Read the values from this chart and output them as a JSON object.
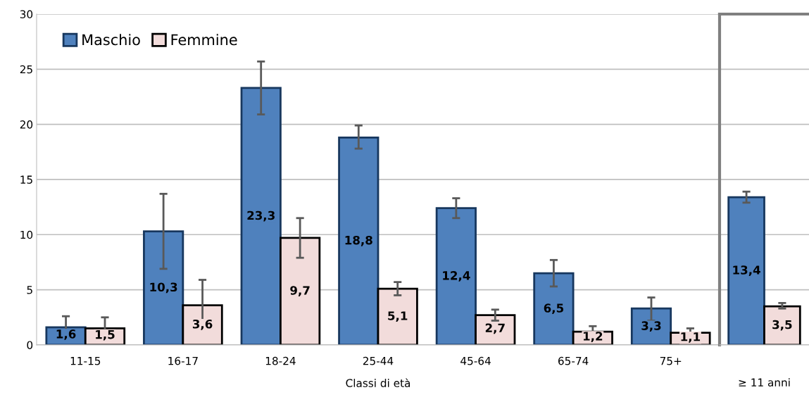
{
  "chart_data": [
    {
      "type": "bar",
      "categories": [
        "11-15",
        "16-17",
        "18-24",
        "25-44",
        "45-64",
        "65-74",
        "75+"
      ],
      "xlabel": "Classi di età",
      "ylim": [
        0,
        30
      ],
      "yticks": [
        0,
        5,
        10,
        15,
        20,
        25,
        30
      ],
      "grid": "y",
      "legend": "top left",
      "series": [
        {
          "name": "Maschio",
          "color": "#4f81bd",
          "values": [
            1.6,
            10.3,
            23.3,
            18.8,
            12.4,
            6.5,
            3.3
          ],
          "value_labels": [
            "1,6",
            "10,3",
            "23,3",
            "18,8",
            "12,4",
            "6,5",
            "3,3"
          ],
          "errors": [
            [
              0.6,
              2.6
            ],
            [
              6.9,
              13.7
            ],
            [
              20.9,
              25.7
            ],
            [
              17.8,
              19.9
            ],
            [
              11.5,
              13.3
            ],
            [
              5.3,
              7.7
            ],
            [
              2.2,
              4.3
            ]
          ]
        },
        {
          "name": "Femmine",
          "color": "#f2dcdb",
          "values": [
            1.5,
            3.6,
            9.7,
            5.1,
            2.7,
            1.2,
            1.1
          ],
          "value_labels": [
            "1,5",
            "3,6",
            "9,7",
            "5,1",
            "2,7",
            "1,2",
            "1,1"
          ],
          "errors": [
            [
              0.6,
              2.5
            ],
            [
              1.4,
              5.9
            ],
            [
              7.9,
              11.5
            ],
            [
              4.5,
              5.7
            ],
            [
              2.2,
              3.2
            ],
            [
              0.7,
              1.7
            ],
            [
              0.6,
              1.5
            ]
          ]
        }
      ]
    },
    {
      "type": "bar",
      "categories": [
        null
      ],
      "xlabel": "≥ 11 anni",
      "ylim": [
        0,
        30
      ],
      "yticks": [
        0,
        5,
        10,
        15,
        20,
        25,
        30
      ],
      "grid": "y",
      "tick_labels": false,
      "series": [
        {
          "color": "#4f81bd",
          "values": [
            13.4
          ],
          "value_labels": [
            "13,4"
          ],
          "errors": [
            [
              12.9,
              13.9
            ]
          ]
        },
        {
          "color": "#f2dcdb",
          "values": [
            3.5
          ],
          "value_labels": [
            "3,5"
          ],
          "errors": [
            [
              3.3,
              3.8
            ]
          ]
        }
      ]
    }
  ]
}
